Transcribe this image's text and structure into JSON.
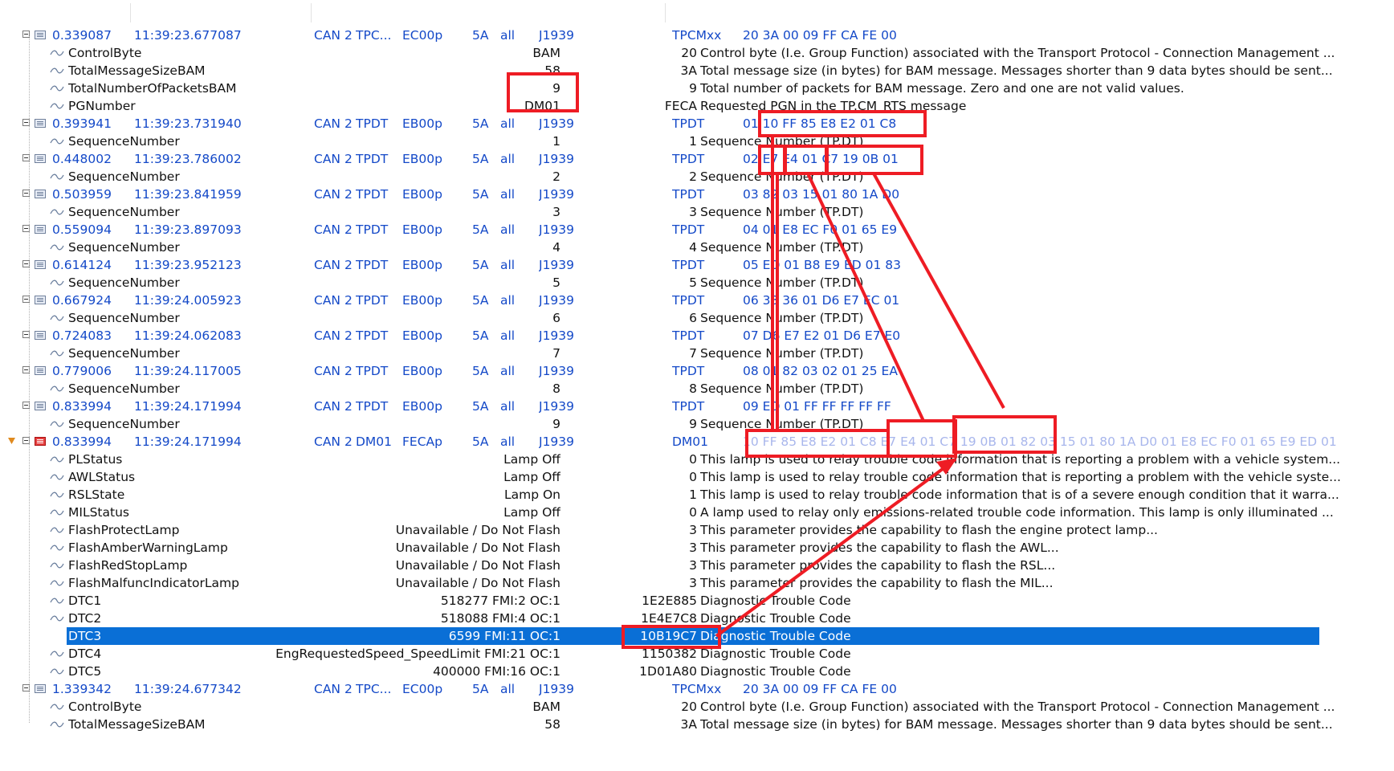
{
  "messages": [
    {
      "time": "0.339087",
      "abs_time": "11:39:23.677087",
      "channel": "CAN 2",
      "name": "TPC...",
      "id": "EC00p",
      "src": "5A",
      "dst": "all",
      "protocol": "J1939",
      "type": "TPCMxx",
      "data": "20  3A  00  09  FF   CA  FE   00",
      "icon": "message-icon",
      "signals": [
        {
          "name": "ControlByte",
          "value": "BAM",
          "raw": "20",
          "desc": "Control byte (I.e. Group Function) associated with the Transport Protocol - Connection Management ..."
        },
        {
          "name": "TotalMessageSizeBAM",
          "value": "58",
          "raw": "3A",
          "desc": "Total message size (in bytes) for BAM  message.  Messages shorter than 9 data bytes should be sent..."
        },
        {
          "name": "TotalNumberOfPacketsBAM",
          "value": "9",
          "raw": "9",
          "desc": "Total number of packets for BAM message.  Zero and one are not valid values."
        },
        {
          "name": "PGNumber",
          "value": "DM01",
          "raw": "FECA",
          "desc": "Requested PGN in the TP.CM_RTS message"
        }
      ]
    },
    {
      "time": "0.393941",
      "abs_time": "11:39:23.731940",
      "channel": "CAN 2",
      "name": "TPDT",
      "id": "EB00p",
      "src": "5A",
      "dst": "all",
      "protocol": "J1939",
      "type": "TPDT",
      "data": "01  10  FF   85  E8  E2  01  C8",
      "icon": "message-icon",
      "signals": [
        {
          "name": "SequenceNumber",
          "value": "1",
          "raw": "1",
          "desc": "Sequence Number (TP.DT)"
        }
      ]
    },
    {
      "time": "0.448002",
      "abs_time": "11:39:23.786002",
      "channel": "CAN 2",
      "name": "TPDT",
      "id": "EB00p",
      "src": "5A",
      "dst": "all",
      "protocol": "J1939",
      "type": "TPDT",
      "data": "02  E7  E4  01  C7  19  0B  01",
      "icon": "message-icon",
      "signals": [
        {
          "name": "SequenceNumber",
          "value": "2",
          "raw": "2",
          "desc": "Sequence Number (TP.DT)"
        }
      ]
    },
    {
      "time": "0.503959",
      "abs_time": "11:39:23.841959",
      "channel": "CAN 2",
      "name": "TPDT",
      "id": "EB00p",
      "src": "5A",
      "dst": "all",
      "protocol": "J1939",
      "type": "TPDT",
      "data": "03  82  03  15  01  80  1A  D0",
      "icon": "message-icon",
      "signals": [
        {
          "name": "SequenceNumber",
          "value": "3",
          "raw": "3",
          "desc": "Sequence Number (TP.DT)"
        }
      ]
    },
    {
      "time": "0.559094",
      "abs_time": "11:39:23.897093",
      "channel": "CAN 2",
      "name": "TPDT",
      "id": "EB00p",
      "src": "5A",
      "dst": "all",
      "protocol": "J1939",
      "type": "TPDT",
      "data": "04  01  E8  EC  F0  01  65  E9",
      "icon": "message-icon",
      "signals": [
        {
          "name": "SequenceNumber",
          "value": "4",
          "raw": "4",
          "desc": "Sequence Number (TP.DT)"
        }
      ]
    },
    {
      "time": "0.614124",
      "abs_time": "11:39:23.952123",
      "channel": "CAN 2",
      "name": "TPDT",
      "id": "EB00p",
      "src": "5A",
      "dst": "all",
      "protocol": "J1939",
      "type": "TPDT",
      "data": "05  ED  01  B8  E9  ED  01  83",
      "icon": "message-icon",
      "signals": [
        {
          "name": "SequenceNumber",
          "value": "5",
          "raw": "5",
          "desc": "Sequence Number (TP.DT)"
        }
      ]
    },
    {
      "time": "0.667924",
      "abs_time": "11:39:24.005923",
      "channel": "CAN 2",
      "name": "TPDT",
      "id": "EB00p",
      "src": "5A",
      "dst": "all",
      "protocol": "J1939",
      "type": "TPDT",
      "data": "06  38  36  01  D6  E7  EC  01",
      "icon": "message-icon",
      "signals": [
        {
          "name": "SequenceNumber",
          "value": "6",
          "raw": "6",
          "desc": "Sequence Number (TP.DT)"
        }
      ]
    },
    {
      "time": "0.724083",
      "abs_time": "11:39:24.062083",
      "channel": "CAN 2",
      "name": "TPDT",
      "id": "EB00p",
      "src": "5A",
      "dst": "all",
      "protocol": "J1939",
      "type": "TPDT",
      "data": "07  D6  E7  E2  01  D6  E7  E0",
      "icon": "message-icon",
      "signals": [
        {
          "name": "SequenceNumber",
          "value": "7",
          "raw": "7",
          "desc": "Sequence Number (TP.DT)"
        }
      ]
    },
    {
      "time": "0.779006",
      "abs_time": "11:39:24.117005",
      "channel": "CAN 2",
      "name": "TPDT",
      "id": "EB00p",
      "src": "5A",
      "dst": "all",
      "protocol": "J1939",
      "type": "TPDT",
      "data": "08  01  82  03  02  01  25  EA",
      "icon": "message-icon",
      "signals": [
        {
          "name": "SequenceNumber",
          "value": "8",
          "raw": "8",
          "desc": "Sequence Number (TP.DT)"
        }
      ]
    },
    {
      "time": "0.833994",
      "abs_time": "11:39:24.171994",
      "channel": "CAN 2",
      "name": "TPDT",
      "id": "EB00p",
      "src": "5A",
      "dst": "all",
      "protocol": "J1939",
      "type": "TPDT",
      "data": "09  ED  01  FF  FF  FF  FF  FF",
      "icon": "message-icon",
      "signals": [
        {
          "name": "SequenceNumber",
          "value": "9",
          "raw": "9",
          "desc": "Sequence Number (TP.DT)"
        }
      ]
    },
    {
      "time": "0.833994",
      "abs_time": "11:39:24.171994",
      "channel": "CAN 2",
      "name": "DM01",
      "id": "FECAp",
      "src": "5A",
      "dst": "all",
      "protocol": "J1939",
      "type": "DM01",
      "data": "10  FF  85  E8  E2  01  C8  E7  E4  01  C7  19  0B  01  82  03  15  01  80  1A  D0  01  E8  EC  F0  01  65  E9  ED  01",
      "icon": "error-message-icon",
      "marker": "bookmark-marker",
      "signals": [
        {
          "name": "PLStatus",
          "value": "Lamp Off",
          "raw": "0",
          "desc": "This lamp is used to relay trouble code information that is reporting a problem with a vehicle system..."
        },
        {
          "name": "AWLStatus",
          "value": "Lamp Off",
          "raw": "0",
          "desc": "This lamp is used to relay trouble code information that is reporting a problem with the vehicle syste..."
        },
        {
          "name": "RSLState",
          "value": "Lamp On",
          "raw": "1",
          "desc": "This lamp is used to relay trouble code information that is of a severe enough condition that it warra..."
        },
        {
          "name": "MILStatus",
          "value": "Lamp Off",
          "raw": "0",
          "desc": "A lamp used to relay only emissions-related trouble code information. This lamp is only illuminated ..."
        },
        {
          "name": "FlashProtectLamp",
          "value": "Unavailable / Do Not Flash",
          "raw": "3",
          "desc": "This parameter provides the capability to flash the engine protect lamp..."
        },
        {
          "name": "FlashAmberWarningLamp",
          "value": "Unavailable / Do Not Flash",
          "raw": "3",
          "desc": "This parameter provides the capability to flash the AWL..."
        },
        {
          "name": "FlashRedStopLamp",
          "value": "Unavailable / Do Not Flash",
          "raw": "3",
          "desc": "This parameter provides the capability to flash the RSL..."
        },
        {
          "name": "FlashMalfuncIndicatorLamp",
          "value": "Unavailable / Do Not Flash",
          "raw": "3",
          "desc": "This parameter provides the capability to flash the MIL..."
        },
        {
          "name": "DTC1",
          "value": "518277 FMI:2 OC:1",
          "raw": "1E2E885",
          "desc": "Diagnostic Trouble Code"
        },
        {
          "name": "DTC2",
          "value": "518088 FMI:4 OC:1",
          "raw": "1E4E7C8",
          "desc": "Diagnostic Trouble Code"
        },
        {
          "name": "DTC3",
          "value": "6599 FMI:11 OC:1",
          "raw": "10B19C7",
          "desc": "Diagnostic Trouble Code",
          "selected": true
        },
        {
          "name": "DTC4",
          "value": "EngRequestedSpeed_SpeedLimit FMI:21 OC:1",
          "raw": "1150382",
          "desc": "Diagnostic Trouble Code"
        },
        {
          "name": "DTC5",
          "value": "400000 FMI:16 OC:1",
          "raw": "1D01A80",
          "desc": "Diagnostic Trouble Code"
        }
      ]
    },
    {
      "time": "1.339342",
      "abs_time": "11:39:24.677342",
      "channel": "CAN 2",
      "name": "TPC...",
      "id": "EC00p",
      "src": "5A",
      "dst": "all",
      "protocol": "J1939",
      "type": "TPCMxx",
      "data": "20  3A  00  09  FF   CA  FE   00",
      "icon": "message-icon",
      "signals": [
        {
          "name": "ControlByte",
          "value": "BAM",
          "raw": "20",
          "desc": "Control byte (I.e. Group Function) associated with the Transport Protocol - Connection Management ..."
        },
        {
          "name": "TotalMessageSizeBAM",
          "value": "58",
          "raw": "3A",
          "desc": "Total message size (in bytes) for BAM  message.  Messages shorter than 9 data bytes should be sent..."
        }
      ]
    }
  ],
  "annotation": {
    "color": "#ee1c24"
  }
}
